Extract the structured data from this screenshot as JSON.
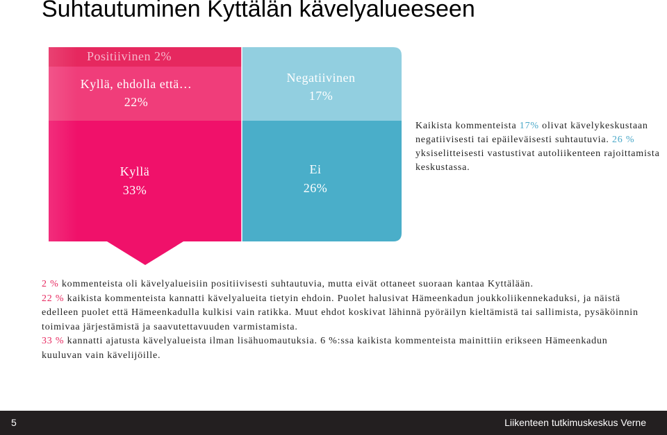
{
  "title": "Suhtautuminen Kyttälän kävelyalueeseen",
  "chart_data": {
    "type": "stacked-column",
    "unit": "%",
    "columns": [
      {
        "name": "Pink column",
        "segments": [
          {
            "label": "Positiivinen",
            "value": 2,
            "text": "Positiivinen 2%",
            "color": "#e6285f"
          },
          {
            "label": "Kyllä, ehdolla että…",
            "value": 22,
            "line1": "Kyllä, ehdolla että…",
            "line2": "22%",
            "color": "#f03d7a"
          },
          {
            "label": "Kyllä",
            "value": 33,
            "line1": "Kyllä",
            "line2": "33%",
            "color": "#f0116a"
          }
        ]
      },
      {
        "name": "Blue column",
        "segments": [
          {
            "label": "Negatiivinen",
            "value": 17,
            "line1": "Negatiivinen",
            "line2": "17%",
            "color": "#92cfe0"
          },
          {
            "label": "Ei",
            "value": 26,
            "line1": "Ei",
            "line2": "26%",
            "color": "#4aaec9"
          }
        ]
      }
    ]
  },
  "right_text": {
    "pre": "Kaikista kommenteista ",
    "hl1": "17%",
    "mid": " olivat kävelykeskustaan negatiivisesti tai epäileväisesti suhtautuvia. ",
    "hl2": "26 %",
    "post": " yksiselitteisesti vastustivat autoliikenteen rajoittamista keskustassa."
  },
  "bottom_text": {
    "p1_hl": "2 %",
    "p1": " kommenteista oli kävelyalueisiin positiivisesti suhtautuvia, mutta eivät ottaneet suoraan kantaa Kyttälään.",
    "p2_hl": "22 %",
    "p2": " kaikista kommenteista kannatti kävelyalueita tietyin ehdoin. Puolet halusivat Hämeenkadun joukkoliikennekaduksi, ja näistä edelleen puolet että Hämeenkadulla kulkisi vain ratikka. Muut ehdot koskivat lähinnä pyöräilyn kieltämistä tai sallimista, pysäköinnin toimivaa järjestämistä ja saavutettavuuden varmistamista.",
    "p3_hl": "33 %",
    "p3": " kannatti ajatusta kävelyalueista ilman lisähuomautuksia. 6 %:ssa kaikista kommenteista mainittiin erikseen Hämeenkadun kuuluvan vain kävelijöille."
  },
  "footer": {
    "page": "5",
    "org": "Liikenteen tutkimuskeskus Verne"
  }
}
